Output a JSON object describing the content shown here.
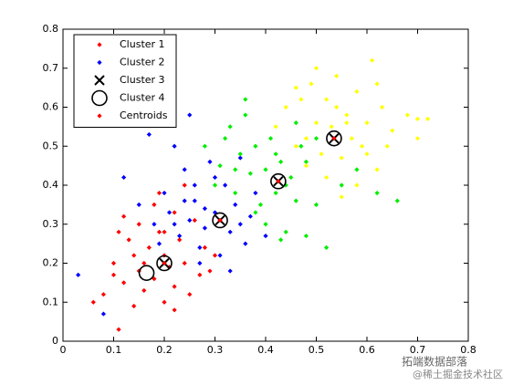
{
  "chart_data": {
    "type": "scatter",
    "xlim": [
      0,
      0.8
    ],
    "ylim": [
      0,
      0.8
    ],
    "xticks": [
      0,
      0.1,
      0.2,
      0.3,
      0.4,
      0.5,
      0.6,
      0.7,
      0.8
    ],
    "yticks": [
      0,
      0.1,
      0.2,
      0.3,
      0.4,
      0.5,
      0.6,
      0.7,
      0.8
    ],
    "legend": "top-left",
    "series": [
      {
        "name": "Cluster 1",
        "color": "#ff0000",
        "marker": "dot",
        "x": [
          0.06,
          0.08,
          0.1,
          0.11,
          0.12,
          0.13,
          0.14,
          0.15,
          0.15,
          0.16,
          0.17,
          0.18,
          0.18,
          0.19,
          0.2,
          0.2,
          0.21,
          0.22,
          0.22,
          0.23,
          0.24,
          0.25,
          0.26,
          0.27,
          0.28,
          0.12,
          0.1,
          0.14,
          0.16,
          0.2,
          0.24,
          0.29,
          0.11,
          0.19,
          0.22,
          0.3
        ],
        "values": [
          0.1,
          0.12,
          0.2,
          0.03,
          0.15,
          0.26,
          0.22,
          0.18,
          0.3,
          0.13,
          0.24,
          0.16,
          0.35,
          0.28,
          0.1,
          0.22,
          0.19,
          0.33,
          0.14,
          0.26,
          0.2,
          0.12,
          0.31,
          0.17,
          0.24,
          0.32,
          0.17,
          0.09,
          0.2,
          0.28,
          0.4,
          0.18,
          0.28,
          0.38,
          0.08,
          0.22
        ]
      },
      {
        "name": "Cluster 2",
        "color": "#0000ff",
        "marker": "dot",
        "x": [
          0.03,
          0.08,
          0.12,
          0.15,
          0.17,
          0.18,
          0.2,
          0.21,
          0.22,
          0.23,
          0.24,
          0.25,
          0.26,
          0.27,
          0.28,
          0.29,
          0.3,
          0.31,
          0.32,
          0.33,
          0.34,
          0.35,
          0.36,
          0.37,
          0.38,
          0.25,
          0.27,
          0.3,
          0.22,
          0.19,
          0.33,
          0.4,
          0.28,
          0.26,
          0.35,
          0.24
        ],
        "values": [
          0.17,
          0.07,
          0.42,
          0.35,
          0.53,
          0.3,
          0.38,
          0.33,
          0.5,
          0.27,
          0.44,
          0.31,
          0.36,
          0.24,
          0.29,
          0.46,
          0.33,
          0.22,
          0.4,
          0.28,
          0.35,
          0.47,
          0.25,
          0.32,
          0.38,
          0.58,
          0.2,
          0.42,
          0.3,
          0.25,
          0.18,
          0.27,
          0.34,
          0.4,
          0.3,
          0.36
        ]
      },
      {
        "color": "#00ee00",
        "marker": "dot",
        "x": [
          0.28,
          0.3,
          0.31,
          0.33,
          0.34,
          0.35,
          0.36,
          0.37,
          0.38,
          0.39,
          0.4,
          0.41,
          0.42,
          0.43,
          0.44,
          0.45,
          0.46,
          0.47,
          0.48,
          0.5,
          0.52,
          0.55,
          0.58,
          0.62,
          0.66,
          0.36,
          0.38,
          0.42,
          0.44,
          0.46,
          0.4,
          0.34,
          0.48,
          0.5,
          0.32,
          0.43
        ],
        "values": [
          0.5,
          0.4,
          0.45,
          0.55,
          0.38,
          0.48,
          0.58,
          0.43,
          0.5,
          0.35,
          0.44,
          0.52,
          0.38,
          0.46,
          0.28,
          0.42,
          0.36,
          0.5,
          0.27,
          0.35,
          0.24,
          0.4,
          0.44,
          0.38,
          0.36,
          0.62,
          0.33,
          0.48,
          0.4,
          0.56,
          0.3,
          0.44,
          0.46,
          0.52,
          0.52,
          0.26
        ]
      },
      {
        "color": "#ffff00",
        "marker": "dot",
        "x": [
          0.42,
          0.44,
          0.46,
          0.47,
          0.48,
          0.49,
          0.5,
          0.51,
          0.52,
          0.53,
          0.54,
          0.55,
          0.56,
          0.57,
          0.58,
          0.59,
          0.6,
          0.61,
          0.62,
          0.63,
          0.65,
          0.68,
          0.7,
          0.72,
          0.52,
          0.55,
          0.5,
          0.58,
          0.6,
          0.46,
          0.64,
          0.54,
          0.48,
          0.56,
          0.62,
          0.7
        ],
        "values": [
          0.55,
          0.6,
          0.5,
          0.62,
          0.45,
          0.66,
          0.56,
          0.48,
          0.62,
          0.55,
          0.68,
          0.47,
          0.58,
          0.52,
          0.64,
          0.5,
          0.56,
          0.72,
          0.44,
          0.6,
          0.54,
          0.58,
          0.57,
          0.57,
          0.42,
          0.37,
          0.7,
          0.4,
          0.48,
          0.65,
          0.5,
          0.6,
          0.52,
          0.56,
          0.66,
          0.52
        ]
      },
      {
        "name": "Cluster 3",
        "color": "#000000",
        "marker": "x",
        "x": [
          0.2,
          0.31,
          0.425,
          0.535
        ],
        "values": [
          0.2,
          0.31,
          0.41,
          0.52
        ]
      },
      {
        "name": "Cluster 4",
        "color": "#000000",
        "marker": "circle",
        "x": [
          0.165,
          0.2,
          0.31,
          0.425,
          0.535
        ],
        "values": [
          0.175,
          0.2,
          0.31,
          0.41,
          0.52
        ]
      },
      {
        "name": "Centroids",
        "color": "#ff0000",
        "marker": "dot",
        "x": [
          0.2,
          0.31,
          0.425,
          0.535
        ],
        "values": [
          0.2,
          0.31,
          0.41,
          0.52
        ]
      }
    ]
  },
  "watermark": {
    "line1": "拓端数据部落",
    "line2": "@稀土掘金技术社区"
  }
}
